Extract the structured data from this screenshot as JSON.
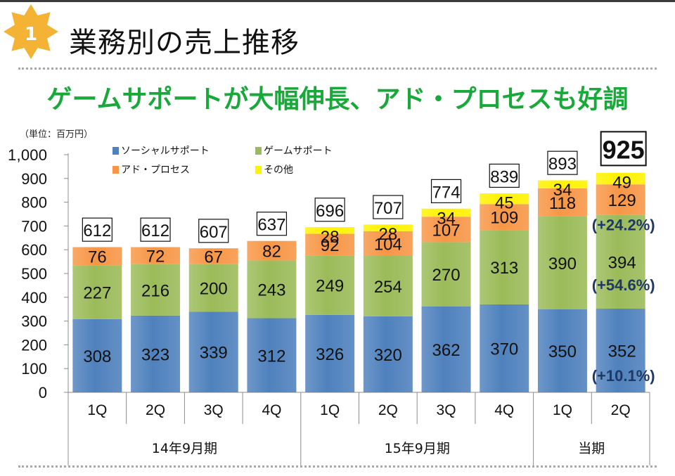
{
  "slide": {
    "badge_number": "1",
    "title": "業務別の売上推移",
    "headline": "ゲームサポートが大幅伸長、アド・プロセスも好調",
    "unit_label": "（単位：百万円）"
  },
  "colors": {
    "social": "#4f81bd",
    "game": "#9bbb59",
    "ad": "#f79646",
    "other": "#fff200",
    "headline": "#19a83a",
    "badge": "#f5b335",
    "pct_text": "#1f3864"
  },
  "chart_data": {
    "type": "bar",
    "stacked": true,
    "ylim": [
      0,
      1000
    ],
    "yticks": [
      "0",
      "100",
      "200",
      "300",
      "400",
      "500",
      "600",
      "700",
      "800",
      "900",
      "1,000"
    ],
    "ytick_values": [
      0,
      100,
      200,
      300,
      400,
      500,
      600,
      700,
      800,
      900,
      1000
    ],
    "grid": false,
    "legend_position": "top-left",
    "categories": [
      "1Q",
      "2Q",
      "3Q",
      "4Q",
      "1Q",
      "2Q",
      "3Q",
      "4Q",
      "1Q",
      "2Q"
    ],
    "groups": [
      {
        "label": "14年9月期",
        "count": 4
      },
      {
        "label": "15年9月期",
        "count": 4
      },
      {
        "label": "当期",
        "count": 2
      }
    ],
    "series": [
      {
        "name": "ソーシャルサポート",
        "values": [
          308,
          323,
          339,
          312,
          326,
          320,
          362,
          370,
          350,
          352
        ],
        "labels": [
          "308",
          "323",
          "339",
          "312",
          "326",
          "320",
          "362",
          "370",
          "350",
          "352"
        ]
      },
      {
        "name": "ゲームサポート",
        "values": [
          227,
          216,
          200,
          243,
          249,
          254,
          270,
          313,
          390,
          394
        ],
        "labels": [
          "227",
          "216",
          "200",
          "243",
          "249",
          "254",
          "270",
          "313",
          "390",
          "394"
        ]
      },
      {
        "name": "アド・プロセス",
        "values": [
          76,
          72,
          67,
          82,
          92,
          104,
          107,
          109,
          118,
          129
        ],
        "labels": [
          "76",
          "72",
          "67",
          "82",
          "92",
          "104",
          "107",
          "109",
          "118",
          "129"
        ]
      },
      {
        "name": "その他",
        "values": [
          0,
          0,
          0,
          0,
          28,
          28,
          34,
          45,
          34,
          49
        ],
        "labels": [
          "",
          "",
          "",
          "",
          "28",
          "28",
          "34",
          "45",
          "34",
          "49"
        ]
      }
    ],
    "totals": [
      "612",
      "612",
      "607",
      "637",
      "696",
      "707",
      "774",
      "839",
      "893",
      "925"
    ],
    "total_values": [
      612,
      612,
      607,
      637,
      696,
      707,
      774,
      839,
      893,
      925
    ],
    "growth_annotations": [
      {
        "text": "(+24.2%)",
        "series": "アド・プロセス"
      },
      {
        "text": "(+54.6%)",
        "series": "ゲームサポート"
      },
      {
        "text": "(+10.1%)",
        "series": "ソーシャルサポート"
      }
    ]
  }
}
